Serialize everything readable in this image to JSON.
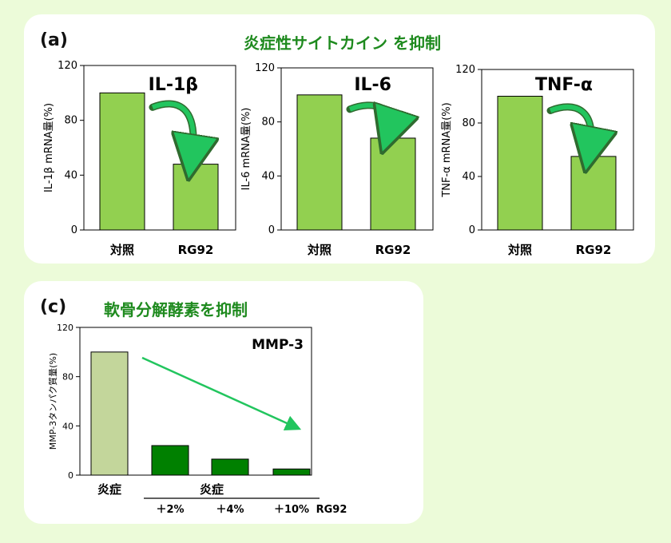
{
  "panel_a": {
    "label": "(a)",
    "title": "炎症性サイトカイン を抑制"
  },
  "panel_c": {
    "label": "(c)",
    "title": "軟骨分解酵素を抑制",
    "group_label": "炎症",
    "rg_label": "RG92"
  },
  "colors": {
    "background": "#ecfbd9",
    "bar_light_green": "#92d050",
    "bar_pale_green": "#c3d69b",
    "bar_dark_green": "#008000",
    "arrow_green": "#22c55e",
    "title_green": "#1e8a1e"
  },
  "chart_data": [
    {
      "type": "bar",
      "title": "IL-1β",
      "ylabel": "IL-1β mRNA量(%)",
      "categories": [
        "対照",
        "RG92"
      ],
      "values": [
        100,
        48
      ],
      "ylim": [
        0,
        120
      ],
      "yticks": [
        0,
        40,
        80,
        120
      ],
      "annotation": "curved-arrow"
    },
    {
      "type": "bar",
      "title": "IL-6",
      "ylabel": "IL-6 mRNA量(%)",
      "categories": [
        "対照",
        "RG92"
      ],
      "values": [
        100,
        68
      ],
      "ylim": [
        0,
        120
      ],
      "yticks": [
        0,
        40,
        80,
        120
      ],
      "annotation": "curved-arrow"
    },
    {
      "type": "bar",
      "title": "TNF-α",
      "ylabel": "TNF-α mRNA量(%)",
      "categories": [
        "対照",
        "RG92"
      ],
      "values": [
        100,
        55
      ],
      "ylim": [
        0,
        120
      ],
      "yticks": [
        0,
        40,
        80,
        120
      ],
      "annotation": "curved-arrow"
    },
    {
      "type": "bar",
      "title": "MMP-3",
      "ylabel": "MMP-3タンパク質量(%)",
      "categories": [
        "炎症",
        "＋2%",
        "＋4%",
        "＋10%"
      ],
      "values": [
        100,
        24,
        13,
        5
      ],
      "ylim": [
        0,
        120
      ],
      "yticks": [
        0,
        40,
        80,
        120
      ],
      "annotation": "straight-arrow"
    }
  ]
}
